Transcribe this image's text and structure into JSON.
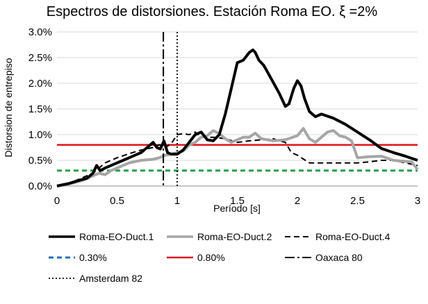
{
  "chart_data": {
    "type": "line",
    "title": "Espectros de distorsiones. Estación Roma EO. ξ =2%",
    "xlabel": "Período [s]",
    "ylabel": "Distorsion de entrepiso",
    "xlim": [
      0,
      3
    ],
    "ylim": [
      0,
      0.03
    ],
    "x_ticks": [
      0,
      0.5,
      1,
      1.5,
      2,
      2.5,
      3
    ],
    "x_tick_labels": [
      "0",
      "0.5",
      "1",
      "1.5",
      "2",
      "2.5",
      "3"
    ],
    "y_ticks": [
      0,
      0.005,
      0.01,
      0.015,
      0.02,
      0.025,
      0.03
    ],
    "y_tick_labels": [
      "0.0%",
      "0.5%",
      "1.0%",
      "1.5%",
      "2.0%",
      "2.5%",
      "3.0%"
    ],
    "grid": "horizontal",
    "legend_position": "bottom",
    "series": [
      {
        "name": "Roma-EO-Duct.1",
        "color": "#000000",
        "style": "solid-thick",
        "x": [
          0,
          0.1,
          0.2,
          0.25,
          0.3,
          0.33,
          0.36,
          0.4,
          0.45,
          0.5,
          0.55,
          0.6,
          0.65,
          0.7,
          0.75,
          0.8,
          0.83,
          0.86,
          0.89,
          0.92,
          0.95,
          1.0,
          1.05,
          1.1,
          1.15,
          1.2,
          1.25,
          1.3,
          1.35,
          1.4,
          1.45,
          1.5,
          1.55,
          1.6,
          1.63,
          1.65,
          1.68,
          1.72,
          1.78,
          1.85,
          1.9,
          1.93,
          1.97,
          2.0,
          2.03,
          2.06,
          2.1,
          2.15,
          2.2,
          2.3,
          2.4,
          2.5,
          2.6,
          2.7,
          2.8,
          2.9,
          3.0
        ],
        "y": [
          0,
          0.0005,
          0.0012,
          0.0015,
          0.0025,
          0.004,
          0.003,
          0.0035,
          0.004,
          0.0045,
          0.005,
          0.0055,
          0.006,
          0.0065,
          0.0075,
          0.0085,
          0.0075,
          0.0072,
          0.0088,
          0.0065,
          0.0062,
          0.0062,
          0.007,
          0.0085,
          0.01,
          0.0105,
          0.009,
          0.0088,
          0.01,
          0.014,
          0.019,
          0.024,
          0.0245,
          0.026,
          0.0265,
          0.026,
          0.0245,
          0.0235,
          0.021,
          0.018,
          0.0155,
          0.016,
          0.019,
          0.0205,
          0.0195,
          0.017,
          0.0145,
          0.0135,
          0.014,
          0.0132,
          0.012,
          0.0105,
          0.009,
          0.0073,
          0.0065,
          0.0058,
          0.005
        ]
      },
      {
        "name": "Roma-EO-Duct.2",
        "color": "#a6a6a6",
        "style": "solid-thick",
        "x": [
          0,
          0.1,
          0.2,
          0.3,
          0.35,
          0.4,
          0.45,
          0.5,
          0.6,
          0.7,
          0.8,
          0.85,
          0.9,
          0.95,
          1.0,
          1.05,
          1.1,
          1.15,
          1.2,
          1.25,
          1.3,
          1.35,
          1.4,
          1.45,
          1.5,
          1.55,
          1.6,
          1.65,
          1.7,
          1.8,
          1.9,
          2.0,
          2.05,
          2.1,
          2.15,
          2.2,
          2.25,
          2.3,
          2.35,
          2.4,
          2.45,
          2.5,
          2.6,
          2.7,
          2.8,
          2.9,
          2.95,
          3.0
        ],
        "y": [
          0,
          0.0004,
          0.001,
          0.002,
          0.0025,
          0.0022,
          0.003,
          0.0035,
          0.0045,
          0.005,
          0.0052,
          0.0055,
          0.006,
          0.0062,
          0.0065,
          0.0068,
          0.008,
          0.0085,
          0.0095,
          0.0098,
          0.0108,
          0.0102,
          0.0092,
          0.0085,
          0.009,
          0.0095,
          0.0095,
          0.0103,
          0.0092,
          0.0088,
          0.009,
          0.0098,
          0.0112,
          0.0092,
          0.0085,
          0.0095,
          0.0105,
          0.0108,
          0.0098,
          0.0095,
          0.0088,
          0.0055,
          0.0057,
          0.0058,
          0.005,
          0.0048,
          0.0047,
          0.0032
        ]
      },
      {
        "name": "Roma-EO-Duct.4",
        "color": "#000000",
        "style": "dashed",
        "x": [
          0,
          0.1,
          0.2,
          0.3,
          0.4,
          0.5,
          0.6,
          0.7,
          0.8,
          0.85,
          0.9,
          0.95,
          1.0,
          1.05,
          1.1,
          1.15,
          1.2,
          1.3,
          1.4,
          1.5,
          1.6,
          1.7,
          1.8,
          1.85,
          1.9,
          1.95,
          2.0,
          2.1,
          2.2,
          2.3,
          2.4,
          2.5,
          2.6,
          2.7,
          2.8,
          2.9,
          3.0
        ],
        "y": [
          0,
          0.0005,
          0.0015,
          0.0025,
          0.0045,
          0.0055,
          0.0063,
          0.007,
          0.0075,
          0.008,
          0.0075,
          0.0082,
          0.01,
          0.0102,
          0.01,
          0.0105,
          0.0095,
          0.0095,
          0.0092,
          0.0085,
          0.0088,
          0.009,
          0.0092,
          0.0088,
          0.0085,
          0.0065,
          0.006,
          0.0045,
          0.0045,
          0.0045,
          0.0045,
          0.0045,
          0.0047,
          0.005,
          0.005,
          0.0045,
          0.004
        ]
      },
      {
        "name": "0.30%",
        "color": "#22a04a",
        "legend_color": "#1f6fb0",
        "style": "hline-dashed",
        "y_value": 0.003
      },
      {
        "name": "0.80%",
        "color": "#e0161b",
        "style": "hline",
        "y_value": 0.008
      },
      {
        "name": "Oaxaca 80",
        "color": "#000000",
        "style": "vline-dashdot",
        "x_value": 0.885
      },
      {
        "name": "Amsterdam 82",
        "color": "#000000",
        "style": "vline-dotted",
        "x_value": 1.0
      }
    ]
  }
}
